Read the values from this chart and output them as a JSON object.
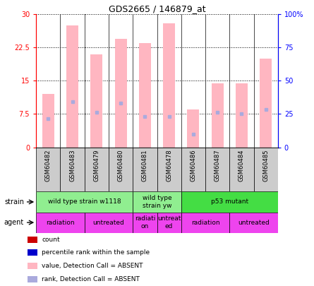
{
  "title": "GDS2665 / 146879_at",
  "samples": [
    "GSM60482",
    "GSM60483",
    "GSM60479",
    "GSM60480",
    "GSM60481",
    "GSM60478",
    "GSM60486",
    "GSM60487",
    "GSM60484",
    "GSM60485"
  ],
  "bar_values": [
    12.0,
    27.5,
    21.0,
    24.5,
    23.5,
    28.0,
    8.5,
    14.5,
    14.5,
    20.0
  ],
  "rank_values": [
    21.5,
    34.5,
    26.5,
    33.0,
    23.0,
    23.0,
    10.0,
    26.5,
    25.0,
    28.5
  ],
  "ylim_left": [
    0,
    30
  ],
  "ylim_right": [
    0,
    100
  ],
  "yticks_left": [
    0,
    7.5,
    15,
    22.5,
    30
  ],
  "yticks_right": [
    0,
    25,
    50,
    75,
    100
  ],
  "ytick_labels_left": [
    "0",
    "7.5",
    "15",
    "22.5",
    "30"
  ],
  "ytick_labels_right": [
    "0",
    "25",
    "50",
    "75",
    "100%"
  ],
  "bar_color": "#FFB6C1",
  "rank_dot_color": "#AAAADD",
  "strain_groups": [
    {
      "label": "wild type strain w1118",
      "start": 0,
      "end": 4,
      "color": "#90EE90"
    },
    {
      "label": "wild type\nstrain yw",
      "start": 4,
      "end": 6,
      "color": "#90EE90"
    },
    {
      "label": "p53 mutant",
      "start": 6,
      "end": 10,
      "color": "#44DD44"
    }
  ],
  "agent_groups": [
    {
      "label": "radiation",
      "start": 0,
      "end": 2,
      "color": "#EE44EE"
    },
    {
      "label": "untreated",
      "start": 2,
      "end": 4,
      "color": "#EE44EE"
    },
    {
      "label": "radiati\non",
      "start": 4,
      "end": 5,
      "color": "#EE44EE"
    },
    {
      "label": "untreat\ned",
      "start": 5,
      "end": 6,
      "color": "#EE44EE"
    },
    {
      "label": "radiation",
      "start": 6,
      "end": 8,
      "color": "#EE44EE"
    },
    {
      "label": "untreated",
      "start": 8,
      "end": 10,
      "color": "#EE44EE"
    }
  ],
  "legend_colors": [
    "#CC0000",
    "#0000CC",
    "#FFB6C1",
    "#AAAADD"
  ],
  "legend_labels": [
    "count",
    "percentile rank within the sample",
    "value, Detection Call = ABSENT",
    "rank, Detection Call = ABSENT"
  ],
  "chart_bg": "#FFFFFF",
  "sample_box_color": "#CCCCCC",
  "grid_color": "#000000",
  "title_fontsize": 9,
  "tick_fontsize": 7,
  "label_fontsize": 7,
  "bar_width": 0.5
}
